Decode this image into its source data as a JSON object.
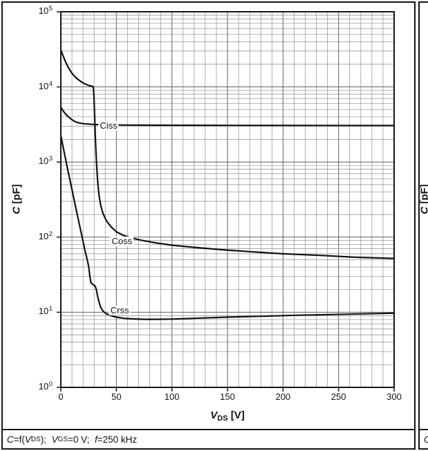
{
  "colors": {
    "grid_minor": "#8c8c8c",
    "grid_major": "#5f5f5f",
    "axis": "#151515",
    "curve": "#111111"
  },
  "figure": {
    "caption_segments": [
      {
        "t": "C",
        "s": "i"
      },
      {
        "t": "=f(",
        "s": ""
      },
      {
        "t": "V",
        "s": "i"
      },
      {
        "t": "DS",
        "s": "sub"
      },
      {
        "t": ");  ",
        "s": ""
      },
      {
        "t": "V",
        "s": "i"
      },
      {
        "t": "GS",
        "s": "sub"
      },
      {
        "t": "=0 V;  ",
        "s": ""
      },
      {
        "t": "f",
        "s": "i"
      },
      {
        "t": "=250 kHz",
        "s": ""
      }
    ],
    "x_axis": {
      "ticks": [
        0,
        50,
        100,
        150,
        200,
        250,
        300
      ],
      "label_segments": [
        {
          "t": "V",
          "s": "bi"
        },
        {
          "t": "DS",
          "s": "bsub"
        },
        {
          "t": " [V]",
          "s": "b"
        }
      ]
    },
    "y_axis": {
      "tick_exponents": [
        0,
        1,
        2,
        3,
        4,
        5
      ],
      "label_segments": [
        {
          "t": "C",
          "s": "bi"
        },
        {
          "t": " [pF]",
          "s": "b"
        }
      ]
    }
  },
  "chart_data": {
    "type": "line",
    "title": "",
    "xlabel": "VDS [V]",
    "ylabel": "C [pF]",
    "x_scale": "linear",
    "y_scale": "log",
    "xlim": [
      0,
      300
    ],
    "ylim": [
      1,
      100000
    ],
    "x_gridline_step": 10,
    "grid": "on",
    "legend": "inline-curve-labels",
    "series": [
      {
        "name": "Ciss",
        "points": [
          [
            0,
            5350
          ],
          [
            2,
            4800
          ],
          [
            4,
            4400
          ],
          [
            6,
            4100
          ],
          [
            8,
            3850
          ],
          [
            10,
            3650
          ],
          [
            12,
            3500
          ],
          [
            14,
            3400
          ],
          [
            16,
            3330
          ],
          [
            18,
            3280
          ],
          [
            20,
            3240
          ],
          [
            24,
            3200
          ],
          [
            28,
            3170
          ],
          [
            35,
            3140
          ],
          [
            45,
            3120
          ],
          [
            60,
            3100
          ],
          [
            80,
            3090
          ],
          [
            120,
            3080
          ],
          [
            160,
            3070
          ],
          [
            200,
            3065
          ],
          [
            250,
            3060
          ],
          [
            300,
            3060
          ]
        ]
      },
      {
        "name": "Coss",
        "points": [
          [
            0,
            31000
          ],
          [
            2,
            26000
          ],
          [
            4,
            22000
          ],
          [
            6,
            19000
          ],
          [
            8,
            16800
          ],
          [
            10,
            15200
          ],
          [
            12,
            14000
          ],
          [
            14,
            13100
          ],
          [
            16,
            12400
          ],
          [
            18,
            11800
          ],
          [
            20,
            11300
          ],
          [
            22,
            10900
          ],
          [
            24,
            10600
          ],
          [
            26,
            10400
          ],
          [
            27.5,
            10250
          ],
          [
            28.8,
            10150
          ],
          [
            29.4,
            9500
          ],
          [
            29.8,
            7500
          ],
          [
            30.2,
            5200
          ],
          [
            30.6,
            3400
          ],
          [
            31,
            2300
          ],
          [
            31.5,
            1500
          ],
          [
            32,
            1050
          ],
          [
            32.7,
            700
          ],
          [
            33.5,
            480
          ],
          [
            34.5,
            350
          ],
          [
            36,
            260
          ],
          [
            38,
            205
          ],
          [
            41,
            165
          ],
          [
            45,
            138
          ],
          [
            50,
            118
          ],
          [
            56,
            106
          ],
          [
            63,
            98
          ],
          [
            72,
            91
          ],
          [
            85,
            84
          ],
          [
            100,
            78
          ],
          [
            120,
            73
          ],
          [
            145,
            68
          ],
          [
            170,
            64
          ],
          [
            200,
            60
          ],
          [
            235,
            57
          ],
          [
            265,
            54
          ],
          [
            300,
            52
          ]
        ]
      },
      {
        "name": "Crss",
        "points": [
          [
            0,
            2250
          ],
          [
            2,
            1600
          ],
          [
            4,
            1150
          ],
          [
            6,
            820
          ],
          [
            8,
            590
          ],
          [
            10,
            430
          ],
          [
            12,
            310
          ],
          [
            14,
            225
          ],
          [
            16,
            165
          ],
          [
            18,
            120
          ],
          [
            20,
            88
          ],
          [
            22,
            64
          ],
          [
            24,
            48
          ],
          [
            25,
            41
          ],
          [
            26,
            31
          ],
          [
            27,
            25
          ],
          [
            28.5,
            23.5
          ],
          [
            30,
            23
          ],
          [
            31,
            22
          ],
          [
            32,
            20
          ],
          [
            33,
            16.5
          ],
          [
            34.5,
            13.5
          ],
          [
            36,
            11.5
          ],
          [
            38,
            10.3
          ],
          [
            41,
            9.5
          ],
          [
            45,
            9
          ],
          [
            50,
            8.6
          ],
          [
            57,
            8.3
          ],
          [
            65,
            8.15
          ],
          [
            75,
            8.05
          ],
          [
            85,
            8.05
          ],
          [
            100,
            8.1
          ],
          [
            120,
            8.3
          ],
          [
            150,
            8.6
          ],
          [
            180,
            8.85
          ],
          [
            210,
            9.1
          ],
          [
            240,
            9.3
          ],
          [
            270,
            9.5
          ],
          [
            300,
            9.7
          ]
        ]
      }
    ],
    "curve_labels": [
      {
        "text": "Ciss",
        "x": 43,
        "y": 3000
      },
      {
        "text": "Coss",
        "x": 55,
        "y": 88
      },
      {
        "text": "Crss",
        "x": 53,
        "y": 10.5
      }
    ]
  },
  "adjacent_figure": {
    "y_label_segments": [
      {
        "t": "C",
        "s": "bi"
      },
      {
        "t": " [pF]",
        "s": "b"
      }
    ],
    "caption_segments": [
      {
        "t": "C",
        "s": "i"
      }
    ]
  }
}
